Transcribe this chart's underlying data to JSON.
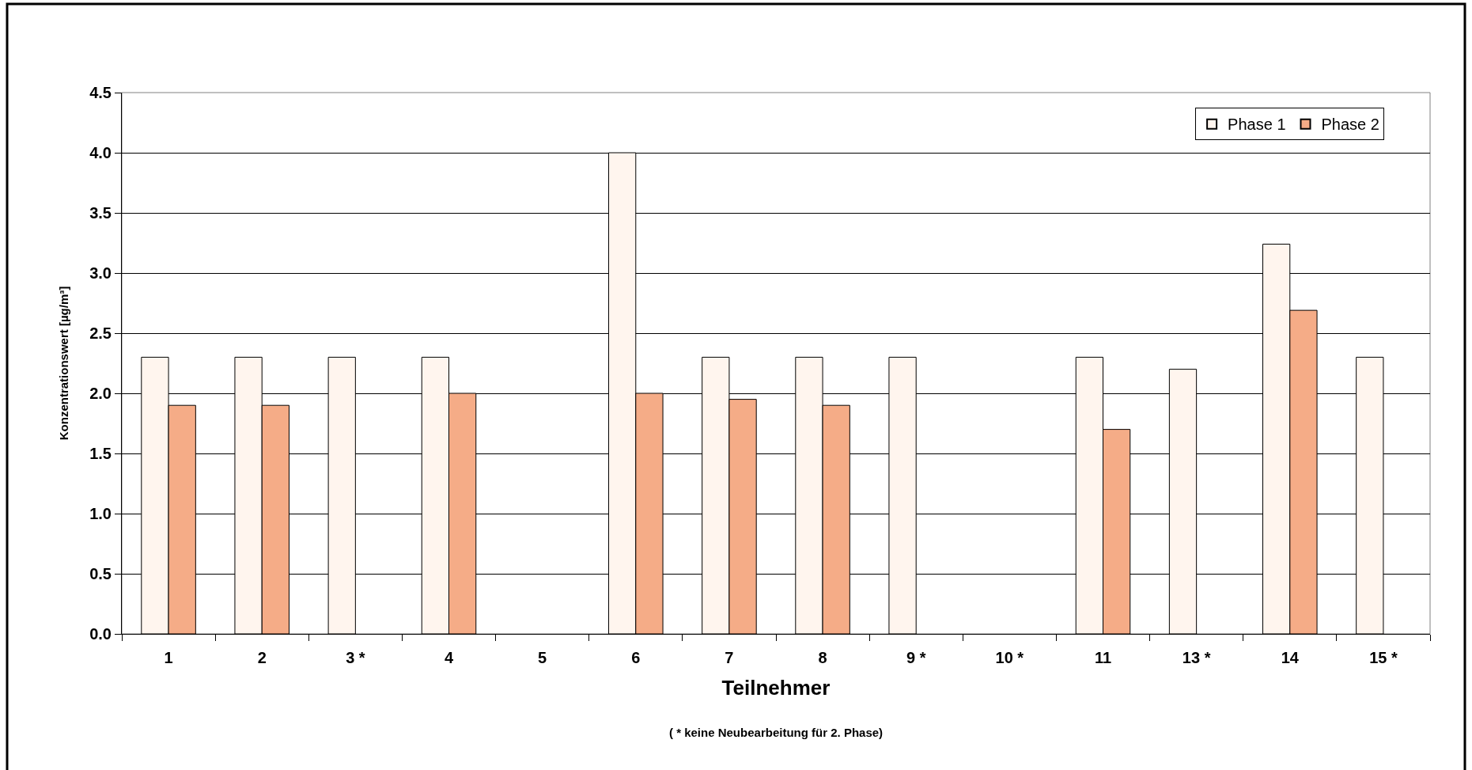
{
  "chart_data": {
    "type": "bar",
    "xlabel": "Teilnehmer",
    "ylabel": "Konzentrationswert [µg/m³]",
    "categories": [
      "1",
      "2",
      "3 *",
      "4",
      "5",
      "6",
      "7",
      "8",
      "9 *",
      "10 *",
      "11",
      "13 *",
      "14",
      "15 *"
    ],
    "series": [
      {
        "name": "Phase 1",
        "color": "#fff5ee",
        "values": [
          2.3,
          2.3,
          2.3,
          2.3,
          null,
          4.0,
          2.3,
          2.3,
          2.3,
          null,
          2.3,
          2.2,
          3.24,
          2.3
        ]
      },
      {
        "name": "Phase 2",
        "color": "#f5ac87",
        "values": [
          1.9,
          1.9,
          null,
          2.0,
          null,
          2.0,
          1.95,
          1.9,
          null,
          null,
          1.7,
          null,
          2.69,
          null
        ]
      }
    ],
    "ylim": [
      0,
      4.5
    ],
    "yticks": [
      {
        "value": 0,
        "label": "0.0"
      },
      {
        "value": 0.5,
        "label": "0.5"
      },
      {
        "value": 1,
        "label": "1.0"
      },
      {
        "value": 1.5,
        "label": "1.5"
      },
      {
        "value": 2,
        "label": "2.0"
      },
      {
        "value": 2.5,
        "label": "2.5"
      },
      {
        "value": 3,
        "label": "3.0"
      },
      {
        "value": 3.5,
        "label": "3.5"
      },
      {
        "value": 4,
        "label": "4.0"
      },
      {
        "value": 4.5,
        "label": "4.5"
      }
    ],
    "grid": "y",
    "legend": "top right",
    "annotations": [
      "( * keine Neubearbeitung für 2. Phase)"
    ]
  }
}
